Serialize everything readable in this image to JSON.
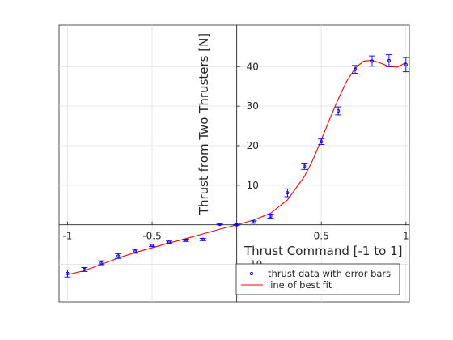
{
  "chart_data": {
    "type": "scatter",
    "title": "",
    "xlabel": "Thrust Command [-1 to 1]",
    "ylabel": "Thrust from Two Thrusters [N]",
    "xlim": [
      -1.05,
      1.02
    ],
    "ylim": [
      -19.5,
      50.5
    ],
    "grid": true,
    "legend_position": "bottom-right",
    "x_ticks": [
      {
        "value": -1,
        "label": "-1"
      },
      {
        "value": -0.5,
        "label": "-0.5"
      },
      {
        "value": 0.5,
        "label": "0.5"
      },
      {
        "value": 1,
        "label": "1"
      }
    ],
    "y_ticks": [
      {
        "value": -10,
        "label": "-10"
      },
      {
        "value": 10,
        "label": "10"
      },
      {
        "value": 20,
        "label": "20"
      },
      {
        "value": 30,
        "label": "30"
      },
      {
        "value": 40,
        "label": "40"
      }
    ],
    "series": [
      {
        "name": "thrust data with error bars",
        "kind": "errorbar",
        "color": "#0000ff",
        "x": [
          -1.0,
          -0.9,
          -0.8,
          -0.7,
          -0.6,
          -0.5,
          -0.4,
          -0.3,
          -0.2,
          -0.1,
          0.0,
          0.1,
          0.2,
          0.3,
          0.4,
          0.5,
          0.6,
          0.7,
          0.8,
          0.9,
          1.0
        ],
        "y": [
          -12.3,
          -11.3,
          -9.6,
          -7.9,
          -6.7,
          -5.2,
          -4.4,
          -3.9,
          -3.7,
          0.1,
          0.0,
          0.7,
          2.2,
          8.1,
          14.8,
          21.0,
          28.8,
          39.3,
          41.4,
          41.5,
          40.5
        ],
        "err": [
          0.9,
          0.5,
          0.5,
          0.6,
          0.5,
          0.3,
          0.3,
          0.3,
          0.3,
          0.1,
          0.1,
          0.3,
          0.5,
          1.0,
          0.8,
          0.7,
          1.0,
          1.0,
          1.3,
          1.5,
          1.8
        ]
      },
      {
        "name": "line of best fit",
        "kind": "line",
        "color": "#ff0000",
        "x": [
          -1.0,
          -0.9,
          -0.8,
          -0.7,
          -0.6,
          -0.5,
          -0.4,
          -0.3,
          -0.2,
          -0.1,
          0.0,
          0.1,
          0.2,
          0.3,
          0.4,
          0.45,
          0.5,
          0.55,
          0.6,
          0.65,
          0.7,
          0.75,
          0.8,
          0.85,
          0.9,
          0.95,
          1.0
        ],
        "y": [
          -12.6,
          -11.6,
          -10.0,
          -8.4,
          -7.0,
          -5.8,
          -4.6,
          -3.5,
          -2.3,
          -1.1,
          0.0,
          1.2,
          2.9,
          6.3,
          12.2,
          16.4,
          21.5,
          26.8,
          31.8,
          36.3,
          39.6,
          41.4,
          41.6,
          40.9,
          40.0,
          39.9,
          41.0
        ]
      }
    ]
  }
}
